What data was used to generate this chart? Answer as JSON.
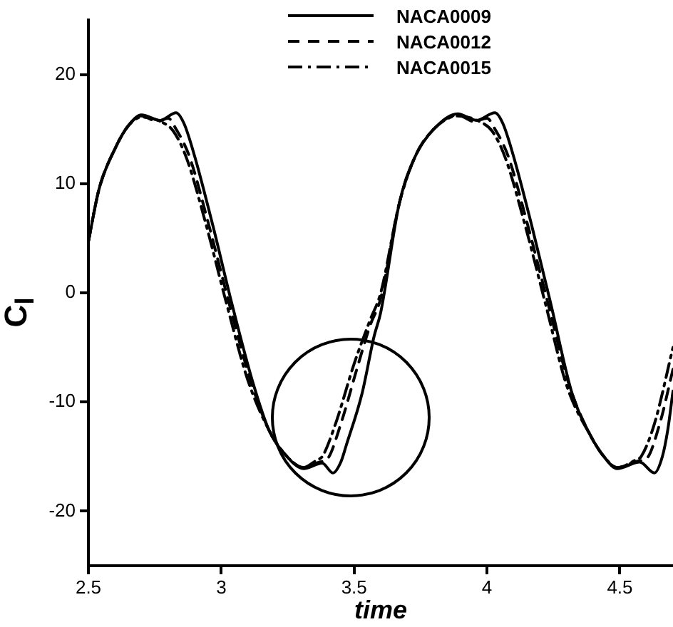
{
  "chart_data": {
    "type": "line",
    "xlabel": "time",
    "ylabel": "C$_{l}$",
    "xlim": [
      2.5,
      4.7
    ],
    "xticks": [
      2.5,
      3,
      3.5,
      4,
      4.5
    ],
    "ylim": [
      -25,
      25
    ],
    "yticks": [
      -20,
      -10,
      0,
      10,
      20
    ],
    "grid": false,
    "legend": "top",
    "marker": "none",
    "series": [
      {
        "name": "NACA0009",
        "color": "#000000",
        "line_style": "solid",
        "x": [
          2.5,
          2.54,
          2.6,
          2.65,
          2.7,
          2.77,
          2.83,
          2.86,
          2.9,
          2.97,
          3.04,
          3.12,
          3.18,
          3.24,
          3.31,
          3.38,
          3.42,
          3.45,
          3.47,
          3.53,
          3.575,
          3.6,
          3.67,
          3.73,
          3.8,
          3.89,
          3.96,
          4.03,
          4.06,
          4.1,
          4.17,
          4.24,
          4.32,
          4.39,
          4.44,
          4.49,
          4.575,
          4.63,
          4.66,
          4.68,
          4.7
        ],
        "values": [
          4.7,
          9.5,
          13.2,
          15.3,
          16.3,
          15.8,
          16.5,
          15.5,
          12.5,
          6,
          -1,
          -8.3,
          -12.6,
          -14.8,
          -16.1,
          -15.6,
          -16.5,
          -15.5,
          -14,
          -9.2,
          -4,
          -1.8,
          8.2,
          12.5,
          15,
          16.4,
          15.8,
          16.5,
          15.5,
          12.5,
          6,
          -1,
          -9.2,
          -13.1,
          -15,
          -16.1,
          -15.5,
          -16.5,
          -15,
          -12.6,
          -9
        ]
      },
      {
        "name": "NACA0012",
        "color": "#000000",
        "line_style": "dashed",
        "x": [
          2.5,
          2.54,
          2.6,
          2.65,
          2.7,
          2.76,
          2.8,
          2.83,
          2.88,
          2.95,
          3.03,
          3.11,
          3.18,
          3.24,
          3.31,
          3.37,
          3.4,
          3.45,
          3.51,
          3.56,
          3.6,
          3.67,
          3.73,
          3.8,
          3.89,
          3.95,
          4.0,
          4.03,
          4.08,
          4.15,
          4.23,
          4.31,
          4.39,
          4.44,
          4.49,
          4.57,
          4.6,
          4.65,
          4.7
        ],
        "values": [
          4.7,
          9.5,
          13.2,
          15.3,
          16.2,
          15.7,
          16,
          15,
          12.5,
          6.5,
          -1,
          -8,
          -12.6,
          -14.8,
          -16,
          -15.5,
          -15.2,
          -12,
          -7,
          -3,
          -0.5,
          8.2,
          12.5,
          15,
          16.3,
          15.7,
          16,
          15,
          12.5,
          6.5,
          -1,
          -8.5,
          -13.1,
          -15,
          -16,
          -15.4,
          -15.2,
          -12,
          -7
        ]
      },
      {
        "name": "NACA0015",
        "color": "#000000",
        "line_style": "dashdot",
        "x": [
          2.5,
          2.54,
          2.6,
          2.65,
          2.7,
          2.78,
          2.82,
          2.87,
          2.94,
          3.02,
          3.1,
          3.18,
          3.24,
          3.31,
          3.36,
          3.38,
          3.43,
          3.5,
          3.56,
          3.6,
          3.67,
          3.73,
          3.8,
          3.89,
          3.98,
          4.02,
          4.07,
          4.14,
          4.22,
          4.3,
          4.39,
          4.44,
          4.49,
          4.56,
          4.58,
          4.63,
          4.7
        ],
        "values": [
          4.7,
          9.5,
          13.2,
          15.3,
          16.1,
          15.6,
          14.8,
          12.3,
          6.5,
          -1,
          -8,
          -12.6,
          -14.8,
          -16,
          -15.3,
          -15,
          -12,
          -6.5,
          -2.5,
          0,
          8.2,
          12.5,
          15,
          16.2,
          15.6,
          14.8,
          12.3,
          6.5,
          -1,
          -8.5,
          -13.1,
          -15,
          -16,
          -15.3,
          -15,
          -12,
          -5
        ]
      }
    ]
  }
}
